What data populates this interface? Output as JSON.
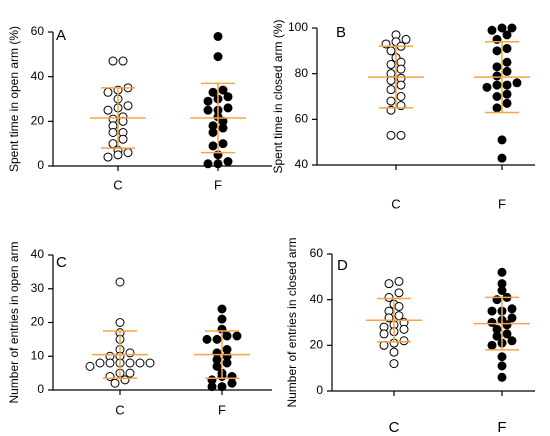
{
  "colors": {
    "axis": "#000000",
    "error_bar": "#F5A545",
    "open_marker_fill": "#ffffff",
    "filled_marker_fill": "#000000"
  },
  "chart_data": [
    {
      "panel": "A",
      "type": "scatter",
      "ylabel": "Spent time in open arm (%)",
      "ylim": [
        0,
        60
      ],
      "yticks": [
        "0",
        "20",
        "40",
        "60"
      ],
      "categories": [
        "C",
        "F"
      ],
      "series": [
        {
          "category": "C",
          "marker": "open",
          "values": [
            47,
            47,
            35,
            34,
            33,
            30,
            27,
            26,
            25,
            22,
            21,
            20,
            18,
            15,
            15,
            12,
            10,
            7,
            6,
            5,
            4
          ],
          "mean": 21.5,
          "sd": 13.5
        },
        {
          "category": "F",
          "marker": "filled",
          "values": [
            58,
            49,
            34,
            33,
            31,
            30,
            29,
            26,
            25,
            25,
            22,
            20,
            18,
            17,
            15,
            10,
            9,
            5,
            2,
            1,
            1
          ],
          "mean": 21.5,
          "sd": 15.5
        }
      ]
    },
    {
      "panel": "B",
      "type": "scatter",
      "ylabel": "Spent time in closed arm (%)",
      "ylim": [
        40,
        100
      ],
      "yticks": [
        "40",
        "60",
        "80",
        "100"
      ],
      "categories": [
        "C",
        "F"
      ],
      "series": [
        {
          "category": "C",
          "marker": "open",
          "values": [
            97,
            95,
            94,
            93,
            92,
            90,
            87,
            85,
            84,
            82,
            80,
            78,
            77,
            75,
            73,
            70,
            68,
            66,
            64,
            53,
            53
          ],
          "mean": 78.5,
          "sd": 13.5
        },
        {
          "category": "F",
          "marker": "filled",
          "values": [
            100,
            100,
            99,
            97,
            95,
            91,
            90,
            85,
            83,
            81,
            79,
            76,
            75,
            75,
            74,
            71,
            70,
            67,
            65,
            51,
            43
          ],
          "mean": 78.5,
          "sd": 15.5
        }
      ]
    },
    {
      "panel": "C",
      "type": "scatter",
      "ylabel": "Number of entries in open arm",
      "ylim": [
        0,
        40
      ],
      "yticks": [
        "0",
        "10",
        "20",
        "30",
        "40"
      ],
      "categories": [
        "C",
        "F"
      ],
      "series": [
        {
          "category": "C",
          "marker": "open",
          "values": [
            32,
            20,
            17,
            15,
            12,
            11,
            10,
            10,
            8,
            8,
            8,
            8,
            8,
            8,
            7,
            5,
            5,
            4,
            3,
            2
          ],
          "mean": 10.5,
          "sd": 7
        },
        {
          "category": "F",
          "marker": "filled",
          "values": [
            24,
            21,
            18,
            16,
            16,
            15,
            15,
            12,
            11,
            10,
            9,
            8,
            7,
            5,
            4,
            4,
            3,
            2,
            1,
            1
          ],
          "mean": 10.5,
          "sd": 7
        }
      ]
    },
    {
      "panel": "D",
      "type": "scatter",
      "ylabel": "Number of entries in closed arm",
      "ylim": [
        0,
        60
      ],
      "yticks": [
        "0",
        "20",
        "40",
        "60"
      ],
      "categories": [
        "C",
        "F"
      ],
      "series": [
        {
          "category": "C",
          "marker": "open",
          "values": [
            48,
            47,
            43,
            41,
            38,
            37,
            35,
            33,
            32,
            30,
            29,
            28,
            27,
            26,
            25,
            22,
            21,
            20,
            17,
            12
          ],
          "mean": 31,
          "sd": 9.5
        },
        {
          "category": "F",
          "marker": "filled",
          "values": [
            52,
            47,
            44,
            41,
            40,
            36,
            35,
            35,
            32,
            31,
            30,
            29,
            27,
            25,
            24,
            22,
            21,
            20,
            15,
            11,
            6
          ],
          "mean": 29.5,
          "sd": 11.5
        }
      ]
    }
  ]
}
